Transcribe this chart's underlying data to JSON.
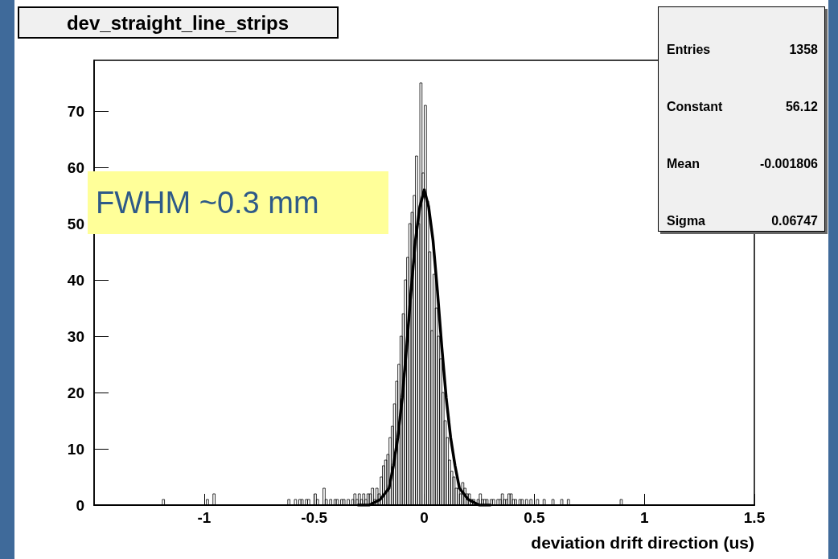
{
  "chart_data": {
    "type": "histogram",
    "title": "dev_straight_line_strips",
    "xlabel": "deviation drift direction (us)",
    "xlim": [
      -1.5,
      1.5
    ],
    "xticks": [
      -1,
      -0.5,
      0,
      0.5,
      1,
      1.5
    ],
    "ylim": [
      0,
      79
    ],
    "yticks": [
      0,
      10,
      20,
      30,
      40,
      50,
      60,
      70
    ],
    "grid": false,
    "annotations": [
      "Entries 1358",
      "Constant 56.12",
      "Mean -0.001806",
      "Sigma 0.06747",
      "FWHM ~0.3 mm"
    ],
    "series": [
      {
        "type": "histogram",
        "color": "#000000",
        "bins": [
          -1.5,
          -1.19,
          -1.18,
          -0.99,
          -0.98,
          -0.96,
          -0.95,
          -0.62,
          -0.61,
          -0.6,
          -0.59,
          -0.58,
          -0.57,
          -0.56,
          -0.55,
          -0.54,
          -0.53,
          -0.52,
          -0.51,
          -0.5,
          -0.49,
          -0.48,
          -0.47,
          -0.46,
          -0.45,
          -0.44,
          -0.43,
          -0.42,
          -0.41,
          -0.4,
          -0.39,
          -0.38,
          -0.37,
          -0.36,
          -0.35,
          -0.34,
          -0.33,
          -0.32,
          -0.31,
          -0.3,
          -0.29,
          -0.28,
          -0.27,
          -0.26,
          -0.25,
          -0.24,
          -0.23,
          -0.22,
          -0.21,
          -0.2,
          -0.19,
          -0.18,
          -0.17,
          -0.16,
          -0.15,
          -0.14,
          -0.13,
          -0.12,
          -0.11,
          -0.1,
          -0.09,
          -0.08,
          -0.07,
          -0.06,
          -0.05,
          -0.04,
          -0.03,
          -0.02,
          -0.01,
          0,
          0.01,
          0.02,
          0.03,
          0.04,
          0.05,
          0.06,
          0.07,
          0.08,
          0.09,
          0.1,
          0.11,
          0.12,
          0.13,
          0.14,
          0.15,
          0.16,
          0.17,
          0.18,
          0.19,
          0.2,
          0.21,
          0.22,
          0.23,
          0.24,
          0.25,
          0.26,
          0.27,
          0.28,
          0.29,
          0.3,
          0.31,
          0.32,
          0.33,
          0.34,
          0.35,
          0.36,
          0.37,
          0.38,
          0.39,
          0.4,
          0.41,
          0.42,
          0.43,
          0.44,
          0.45,
          0.46,
          0.47,
          0.48,
          0.49,
          0.5,
          0.51,
          0.52,
          0.53,
          0.54,
          0.55,
          0.56,
          0.57,
          0.58,
          0.59,
          0.6,
          0.61,
          0.62,
          0.63,
          0.64,
          0.65,
          0.66,
          0.89,
          0.9,
          1.5
        ],
        "values": [
          0,
          1,
          0,
          1,
          0,
          2,
          0,
          1,
          0,
          0,
          1,
          0,
          1,
          1,
          0,
          1,
          1,
          0,
          0,
          2,
          1,
          0,
          0,
          3,
          1,
          0,
          1,
          0,
          1,
          1,
          0,
          1,
          1,
          0,
          1,
          0,
          1,
          2,
          1,
          2,
          1,
          2,
          1,
          2,
          2,
          3,
          1,
          3,
          2,
          5,
          7,
          8,
          9,
          12,
          14,
          18,
          22,
          25,
          30,
          34,
          40,
          44,
          50,
          52,
          55,
          62,
          50,
          75,
          59,
          71,
          54,
          45,
          31,
          41,
          35,
          30,
          26,
          20,
          15,
          12,
          8,
          6,
          5,
          3,
          3,
          2,
          4,
          3,
          2,
          2,
          1,
          1,
          0,
          1,
          2,
          1,
          1,
          1,
          0,
          1,
          1,
          0,
          1,
          1,
          2,
          1,
          1,
          2,
          2,
          1,
          1,
          0,
          1,
          1,
          0,
          1,
          0,
          1,
          0,
          0,
          1,
          0,
          0,
          1,
          0,
          0,
          0,
          1,
          0,
          0,
          0,
          1,
          0,
          0,
          1,
          0,
          1,
          0
        ]
      },
      {
        "type": "line",
        "color": "#000000",
        "x": [
          -0.3,
          -0.25,
          -0.2,
          -0.18,
          -0.16,
          -0.14,
          -0.12,
          -0.1,
          -0.08,
          -0.06,
          -0.04,
          -0.02,
          0,
          0.02,
          0.04,
          0.06,
          0.08,
          0.1,
          0.12,
          0.14,
          0.16,
          0.18,
          0.2,
          0.25,
          0.3
        ],
        "values": [
          0,
          0,
          1,
          2,
          3,
          7,
          12,
          19,
          28,
          38,
          47,
          53,
          56,
          53,
          47,
          38,
          28,
          19,
          12,
          7,
          3,
          2,
          1,
          0,
          0
        ]
      }
    ]
  }
}
